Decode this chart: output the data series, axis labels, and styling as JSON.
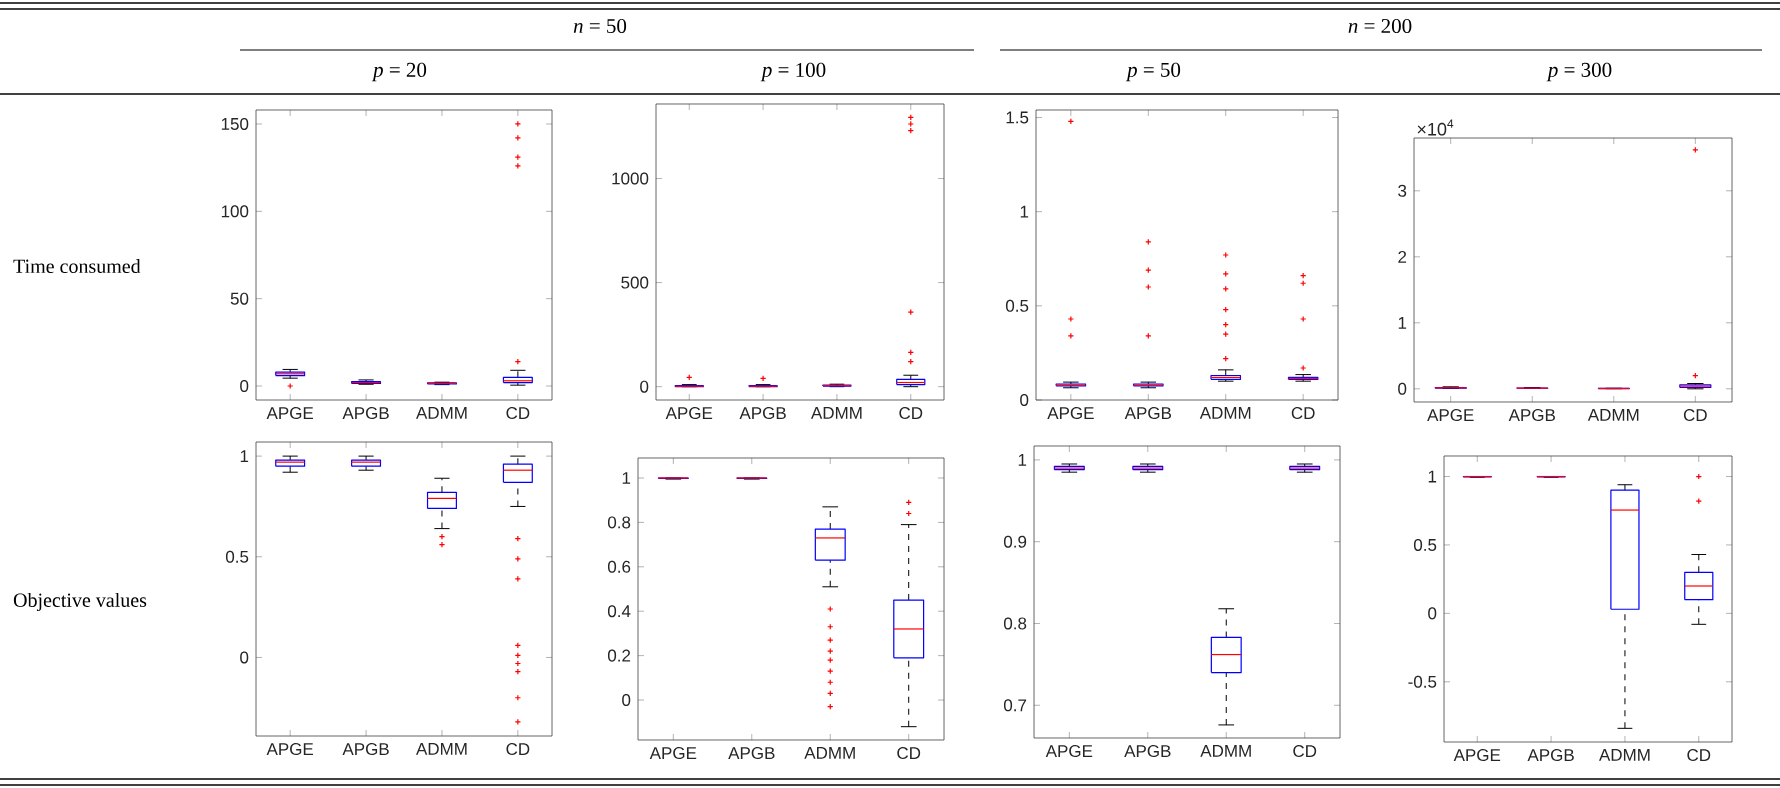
{
  "chart_data": [
    {
      "type": "box",
      "annotations": [
        "*n* = 50"
      ],
      "subtitle": "*p* = 20",
      "ylabel": "Time consumed",
      "categories": [
        "APGE",
        "APGB",
        "ADMM",
        "CD"
      ],
      "color": "#0000ff",
      "marker": "cross",
      "ylim": [
        -8,
        158
      ],
      "yticks": [
        0,
        50,
        100,
        150
      ],
      "boxes": [
        {
          "low": 4.5,
          "q1": 6,
          "median": 7,
          "q3": 8,
          "high": 9.5,
          "outliers": [
            0
          ]
        },
        {
          "low": 1,
          "q1": 1.5,
          "median": 2,
          "q3": 2.5,
          "high": 3.5
        },
        {
          "low": 0.8,
          "q1": 1.2,
          "median": 1.5,
          "q3": 1.8,
          "high": 2.2
        },
        {
          "low": 0.5,
          "q1": 2,
          "median": 3,
          "q3": 5,
          "high": 9,
          "outliers": [
            14,
            126,
            131,
            142,
            150
          ]
        }
      ]
    },
    {
      "type": "box",
      "subtitle": "*p* = 100",
      "categories": [
        "APGE",
        "APGB",
        "ADMM",
        "CD"
      ],
      "color": "#0000ff",
      "marker": "cross",
      "ylim": [
        -64,
        1358
      ],
      "yticks": [
        0,
        500,
        1000
      ],
      "boxes": [
        {
          "low": 0,
          "q1": 0,
          "median": 2,
          "q3": 5,
          "high": 10,
          "outliers": [
            45
          ]
        },
        {
          "low": 0,
          "q1": 0,
          "median": 2,
          "q3": 5,
          "high": 10,
          "outliers": [
            40
          ]
        },
        {
          "low": 0,
          "q1": 3,
          "median": 5,
          "q3": 7,
          "high": 12
        },
        {
          "low": 0,
          "q1": 10,
          "median": 20,
          "q3": 35,
          "high": 55,
          "outliers": [
            120,
            165,
            358,
            1230,
            1262,
            1294
          ]
        }
      ]
    },
    {
      "type": "box",
      "annotations": [
        "*n* = 200"
      ],
      "subtitle": "*p* = 50",
      "categories": [
        "APGE",
        "APGB",
        "ADMM",
        "CD"
      ],
      "color": "#0000ff",
      "marker": "cross",
      "ylim": [
        0,
        1.54
      ],
      "yticks": [
        0,
        0.5,
        1,
        1.5
      ],
      "boxes": [
        {
          "low": 0.065,
          "q1": 0.075,
          "median": 0.08,
          "q3": 0.085,
          "high": 0.095,
          "outliers": [
            0.34,
            0.43,
            1.48
          ]
        },
        {
          "low": 0.065,
          "q1": 0.075,
          "median": 0.08,
          "q3": 0.085,
          "high": 0.095,
          "outliers": [
            0.34,
            0.6,
            0.69,
            0.84
          ]
        },
        {
          "low": 0.1,
          "q1": 0.11,
          "median": 0.12,
          "q3": 0.13,
          "high": 0.16,
          "outliers": [
            0.22,
            0.35,
            0.4,
            0.48,
            0.59,
            0.67,
            0.77
          ]
        },
        {
          "low": 0.1,
          "q1": 0.11,
          "median": 0.115,
          "q3": 0.12,
          "high": 0.135,
          "outliers": [
            0.17,
            0.43,
            0.62,
            0.66
          ]
        }
      ]
    },
    {
      "type": "box",
      "subtitle": "*p* = 300",
      "categories": [
        "APGE",
        "APGB",
        "ADMM",
        "CD"
      ],
      "color": "#0000ff",
      "marker": "cross",
      "ylim": [
        -0.2,
        3.8
      ],
      "yticks": [
        0,
        1,
        2,
        3
      ],
      "annotations": [
        "×10$^{4}$"
      ],
      "boxes": [
        {
          "low": 0.005,
          "q1": 0.01,
          "median": 0.015,
          "q3": 0.02,
          "high": 0.03
        },
        {
          "low": 0.005,
          "q1": 0.008,
          "median": 0.01,
          "q3": 0.012,
          "high": 0.02
        },
        {
          "low": 0.002,
          "q1": 0.004,
          "median": 0.005,
          "q3": 0.006,
          "high": 0.008
        },
        {
          "low": 0,
          "q1": 0.02,
          "median": 0.04,
          "q3": 0.06,
          "high": 0.08,
          "outliers": [
            0.2,
            3.62
          ]
        }
      ]
    },
    {
      "type": "box",
      "ylabel": "Objective values",
      "categories": [
        "APGE",
        "APGB",
        "ADMM",
        "CD"
      ],
      "color": "#0000ff",
      "marker": "cross",
      "ylim": [
        -0.39,
        1.07
      ],
      "yticks": [
        0,
        0.5,
        1
      ],
      "boxes": [
        {
          "low": 0.92,
          "q1": 0.95,
          "median": 0.97,
          "q3": 0.98,
          "high": 1.0
        },
        {
          "low": 0.93,
          "q1": 0.95,
          "median": 0.97,
          "q3": 0.98,
          "high": 1.0
        },
        {
          "low": 0.64,
          "q1": 0.74,
          "median": 0.79,
          "q3": 0.82,
          "high": 0.89,
          "outliers": [
            0.56,
            0.6
          ]
        },
        {
          "low": 0.75,
          "q1": 0.87,
          "median": 0.93,
          "q3": 0.96,
          "high": 1.0,
          "outliers": [
            -0.32,
            -0.2,
            -0.07,
            -0.03,
            0.01,
            0.06,
            0.39,
            0.49,
            0.59
          ]
        }
      ]
    },
    {
      "type": "box",
      "categories": [
        "APGE",
        "APGB",
        "ADMM",
        "CD"
      ],
      "color": "#0000ff",
      "marker": "cross",
      "ylim": [
        -0.18,
        1.09
      ],
      "yticks": [
        0,
        0.2,
        0.4,
        0.6,
        0.8,
        1
      ],
      "boxes": [
        {
          "low": 0.995,
          "q1": 0.998,
          "median": 1.0,
          "q3": 1.0,
          "high": 1.0
        },
        {
          "low": 0.995,
          "q1": 0.998,
          "median": 1.0,
          "q3": 1.0,
          "high": 1.0
        },
        {
          "low": 0.51,
          "q1": 0.63,
          "median": 0.73,
          "q3": 0.77,
          "high": 0.87,
          "outliers": [
            -0.03,
            0.03,
            0.08,
            0.13,
            0.18,
            0.22,
            0.27,
            0.33,
            0.41
          ]
        },
        {
          "low": -0.12,
          "q1": 0.19,
          "median": 0.32,
          "q3": 0.45,
          "high": 0.79,
          "outliers": [
            0.84,
            0.89
          ]
        }
      ]
    },
    {
      "type": "box",
      "categories": [
        "APGE",
        "APGB",
        "ADMM",
        "CD"
      ],
      "color": "#0000ff",
      "marker": "cross",
      "ylim": [
        0.66,
        1.017
      ],
      "yticks": [
        0.7,
        0.8,
        0.9,
        1
      ],
      "boxes": [
        {
          "low": 0.985,
          "q1": 0.988,
          "median": 0.99,
          "q3": 0.992,
          "high": 0.995
        },
        {
          "low": 0.985,
          "q1": 0.988,
          "median": 0.99,
          "q3": 0.992,
          "high": 0.995
        },
        {
          "low": 0.676,
          "q1": 0.74,
          "median": 0.762,
          "q3": 0.783,
          "high": 0.818
        },
        {
          "low": 0.985,
          "q1": 0.988,
          "median": 0.99,
          "q3": 0.992,
          "high": 0.995
        }
      ]
    },
    {
      "type": "box",
      "categories": [
        "APGE",
        "APGB",
        "ADMM",
        "CD"
      ],
      "color": "#0000ff",
      "marker": "cross",
      "ylim": [
        -0.94,
        1.15
      ],
      "yticks": [
        -0.5,
        0,
        0.5,
        1
      ],
      "boxes": [
        {
          "low": 0.995,
          "q1": 0.998,
          "median": 1.0,
          "q3": 1.0,
          "high": 1.0
        },
        {
          "low": 0.995,
          "q1": 0.998,
          "median": 1.0,
          "q3": 1.0,
          "high": 1.0
        },
        {
          "low": -0.84,
          "q1": 0.03,
          "median": 0.755,
          "q3": 0.9,
          "high": 0.94
        },
        {
          "low": -0.08,
          "q1": 0.1,
          "median": 0.2,
          "q3": 0.3,
          "high": 0.43,
          "outliers": [
            0.82,
            1.0
          ]
        }
      ]
    }
  ]
}
